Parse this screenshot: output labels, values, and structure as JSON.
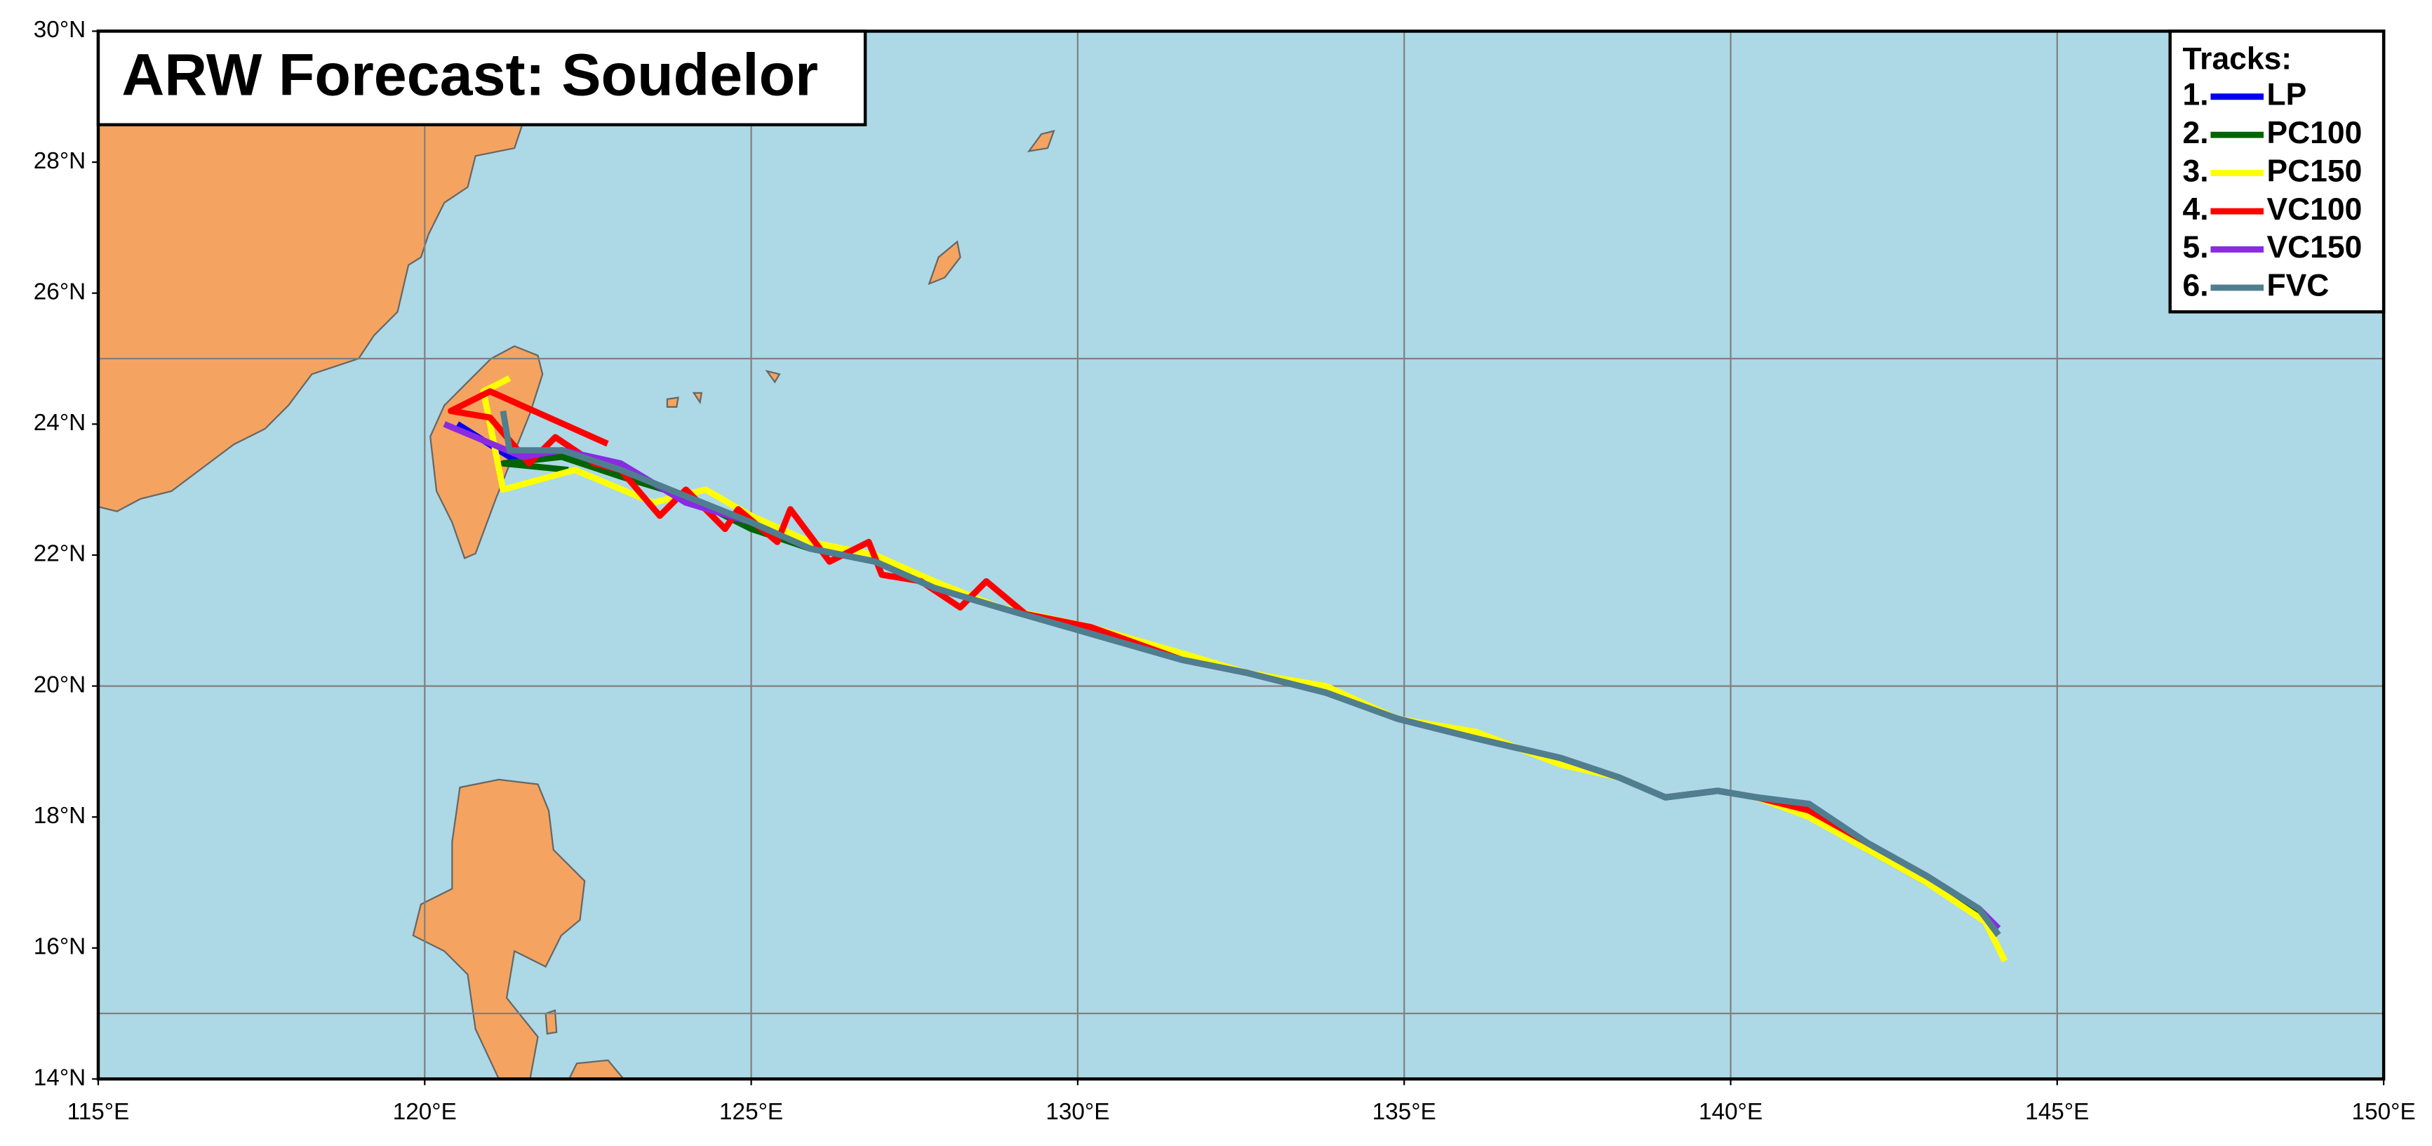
{
  "chart_data": {
    "type": "track",
    "title": "ARW Forecast: Soudelor",
    "legend_title": "Tracks:",
    "xlim": [
      115,
      150
    ],
    "ylim": [
      14,
      30
    ],
    "xticks": [
      {
        "value": 115,
        "label": "115°E"
      },
      {
        "value": 120,
        "label": "120°E"
      },
      {
        "value": 125,
        "label": "125°E"
      },
      {
        "value": 130,
        "label": "130°E"
      },
      {
        "value": 135,
        "label": "135°E"
      },
      {
        "value": 140,
        "label": "140°E"
      },
      {
        "value": 145,
        "label": "145°E"
      },
      {
        "value": 150,
        "label": "150°E"
      }
    ],
    "yticks": [
      {
        "value": 14,
        "label": "14°N"
      },
      {
        "value": 16,
        "label": "16°N"
      },
      {
        "value": 18,
        "label": "18°N"
      },
      {
        "value": 20,
        "label": "20°N"
      },
      {
        "value": 22,
        "label": "22°N"
      },
      {
        "value": 24,
        "label": "24°N"
      },
      {
        "value": 26,
        "label": "26°N"
      },
      {
        "value": 28,
        "label": "28°N"
      },
      {
        "value": 30,
        "label": "30°N"
      }
    ],
    "xgrid": [
      120,
      125,
      130,
      135,
      140,
      145
    ],
    "ygrid": [
      15,
      20,
      25
    ],
    "series": [
      {
        "number": "1.",
        "name": "LP",
        "color": "#0000ee",
        "x": [
          144.1,
          143.8,
          143.0,
          142.1,
          141.2,
          140.4,
          139.8,
          139.0,
          138.3,
          137.4,
          136.1,
          134.9,
          133.8,
          132.6,
          131.6,
          130.2,
          128.8,
          127.8,
          126.9,
          125.9,
          125.0,
          124.0,
          123.0,
          122.1,
          121.3,
          120.5
        ],
        "y": [
          16.3,
          16.6,
          17.1,
          17.6,
          18.1,
          18.3,
          18.4,
          18.3,
          18.6,
          18.9,
          19.2,
          19.5,
          19.9,
          20.2,
          20.4,
          20.8,
          21.2,
          21.5,
          21.9,
          22.1,
          22.5,
          22.9,
          23.3,
          23.6,
          23.5,
          24.0
        ]
      },
      {
        "number": "2.",
        "name": "PC100",
        "color": "#006400",
        "x": [
          144.1,
          143.8,
          143.0,
          142.1,
          141.2,
          140.4,
          139.8,
          139.0,
          138.3,
          137.4,
          136.1,
          134.9,
          133.8,
          132.6,
          131.6,
          130.2,
          128.8,
          127.8,
          126.9,
          125.9,
          125.0,
          124.0,
          123.0,
          122.1,
          121.2,
          122.2
        ],
        "y": [
          16.2,
          16.5,
          17.0,
          17.5,
          18.1,
          18.3,
          18.4,
          18.3,
          18.6,
          18.9,
          19.2,
          19.5,
          19.9,
          20.2,
          20.4,
          20.8,
          21.2,
          21.5,
          21.9,
          22.1,
          22.4,
          22.9,
          23.2,
          23.5,
          23.4,
          23.3
        ]
      },
      {
        "number": "3.",
        "name": "PC150",
        "color": "#ffff00",
        "x": [
          144.2,
          143.9,
          143.0,
          142.1,
          141.2,
          140.4,
          139.8,
          139.0,
          138.3,
          137.4,
          136.1,
          134.9,
          133.8,
          132.6,
          131.6,
          130.2,
          128.8,
          127.8,
          126.9,
          125.9,
          125.0,
          124.3,
          123.5,
          122.3,
          121.2,
          120.9,
          121.3
        ],
        "y": [
          15.8,
          16.4,
          17.0,
          17.5,
          18.0,
          18.3,
          18.4,
          18.3,
          18.6,
          18.8,
          19.3,
          19.5,
          20.0,
          20.2,
          20.5,
          20.9,
          21.2,
          21.6,
          22.0,
          22.2,
          22.6,
          23.0,
          22.8,
          23.3,
          23.0,
          24.5,
          24.7
        ]
      },
      {
        "number": "4.",
        "name": "VC100",
        "color": "#ff0000",
        "x": [
          144.1,
          143.8,
          143.0,
          142.1,
          141.2,
          140.4,
          139.8,
          139.0,
          138.3,
          137.4,
          136.1,
          134.9,
          133.8,
          132.6,
          131.6,
          130.2,
          129.2,
          128.6,
          128.2,
          127.6,
          127.0,
          126.8,
          126.2,
          125.6,
          125.4,
          124.8,
          124.6,
          124.0,
          123.6,
          123.0,
          122.6,
          122.0,
          121.6,
          121.0,
          120.4,
          121.0,
          122.8
        ],
        "y": [
          16.2,
          16.6,
          17.1,
          17.6,
          18.1,
          18.3,
          18.4,
          18.3,
          18.6,
          18.9,
          19.2,
          19.5,
          19.9,
          20.2,
          20.4,
          20.9,
          21.1,
          21.6,
          21.2,
          21.6,
          21.7,
          22.2,
          21.9,
          22.7,
          22.2,
          22.7,
          22.4,
          23.0,
          22.6,
          23.3,
          23.4,
          23.8,
          23.4,
          24.1,
          24.2,
          24.5,
          23.7
        ]
      },
      {
        "number": "5.",
        "name": "VC150",
        "color": "#8a2be2",
        "x": [
          144.1,
          143.8,
          143.0,
          142.1,
          141.2,
          140.4,
          139.8,
          139.0,
          138.3,
          137.4,
          136.1,
          134.9,
          133.8,
          132.6,
          131.6,
          130.2,
          128.8,
          127.8,
          126.9,
          125.9,
          125.0,
          124.0,
          123.0,
          122.1,
          121.5,
          120.3
        ],
        "y": [
          16.3,
          16.6,
          17.1,
          17.6,
          18.2,
          18.3,
          18.4,
          18.3,
          18.6,
          18.9,
          19.2,
          19.5,
          19.9,
          20.2,
          20.4,
          20.8,
          21.2,
          21.5,
          21.9,
          22.1,
          22.5,
          22.8,
          23.4,
          23.6,
          23.5,
          24.0
        ]
      },
      {
        "number": "6.",
        "name": "FVC",
        "color": "#4f7f8f",
        "x": [
          144.1,
          143.8,
          143.0,
          142.1,
          141.2,
          140.4,
          139.8,
          139.0,
          138.3,
          137.4,
          136.1,
          134.9,
          133.8,
          132.6,
          131.6,
          130.2,
          128.8,
          127.8,
          126.9,
          125.9,
          125.0,
          124.0,
          123.0,
          122.1,
          121.3,
          121.2
        ],
        "y": [
          16.2,
          16.6,
          17.1,
          17.6,
          18.2,
          18.3,
          18.4,
          18.3,
          18.6,
          18.9,
          19.2,
          19.5,
          19.9,
          20.2,
          20.4,
          20.8,
          21.2,
          21.5,
          21.9,
          22.1,
          22.5,
          22.9,
          23.3,
          23.6,
          23.6,
          24.2
        ]
      }
    ]
  }
}
